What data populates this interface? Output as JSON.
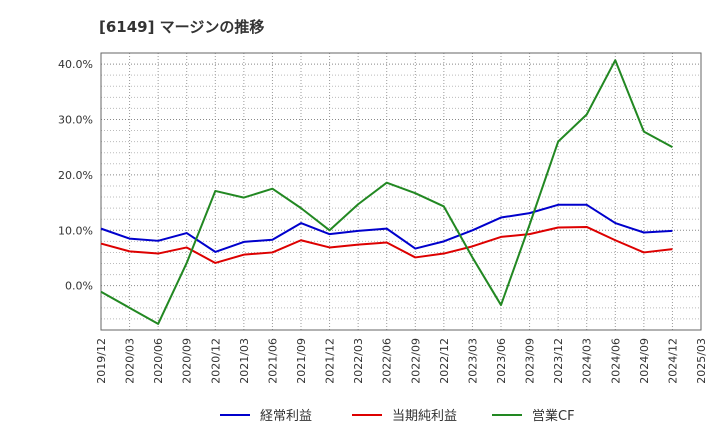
{
  "chart_data": {
    "type": "line",
    "title": "[6149]  マージンの推移",
    "x": [
      "2019/12",
      "2020/03",
      "2020/06",
      "2020/09",
      "2020/12",
      "2021/03",
      "2021/06",
      "2021/09",
      "2021/12",
      "2022/03",
      "2022/06",
      "2022/09",
      "2022/12",
      "2023/03",
      "2023/06",
      "2023/09",
      "2023/12",
      "2024/03",
      "2024/06",
      "2024/09",
      "2024/12"
    ],
    "x_ticks": [
      "2019/12",
      "2020/03",
      "2020/06",
      "2020/09",
      "2020/12",
      "2021/03",
      "2021/06",
      "2021/09",
      "2021/12",
      "2022/03",
      "2022/06",
      "2022/09",
      "2022/12",
      "2023/03",
      "2023/06",
      "2023/09",
      "2023/12",
      "2024/03",
      "2024/06",
      "2024/09",
      "2024/12",
      "2025/03"
    ],
    "y_ticks": [
      "0.0%",
      "10.0%",
      "20.0%",
      "30.0%",
      "40.0%"
    ],
    "y_tick_values": [
      0,
      10,
      20,
      30,
      40
    ],
    "ylim": [
      -8,
      42
    ],
    "grid": true,
    "legend_position": "bottom",
    "series": [
      {
        "name": "経常利益",
        "color": "#0000cc",
        "values": [
          10.3,
          8.5,
          8.1,
          9.5,
          6.1,
          7.9,
          8.3,
          11.3,
          9.3,
          9.9,
          10.3,
          6.7,
          8.0,
          10.0,
          12.3,
          13.1,
          14.6,
          14.6,
          11.3,
          9.6,
          9.9
        ]
      },
      {
        "name": "当期純利益",
        "color": "#dd0000",
        "values": [
          7.6,
          6.2,
          5.8,
          6.9,
          4.1,
          5.6,
          6.0,
          8.2,
          6.9,
          7.4,
          7.8,
          5.1,
          5.8,
          7.1,
          8.8,
          9.3,
          10.5,
          10.6,
          8.2,
          6.0,
          6.6
        ]
      },
      {
        "name": "営業CF",
        "color": "#228822",
        "values": [
          -1.1,
          -4.0,
          -6.9,
          4.1,
          17.1,
          15.9,
          17.5,
          14.0,
          10.0,
          14.7,
          18.6,
          16.7,
          14.3,
          5.1,
          -3.5,
          11.0,
          26.0,
          30.9,
          40.7,
          27.8,
          25.0
        ]
      }
    ]
  }
}
